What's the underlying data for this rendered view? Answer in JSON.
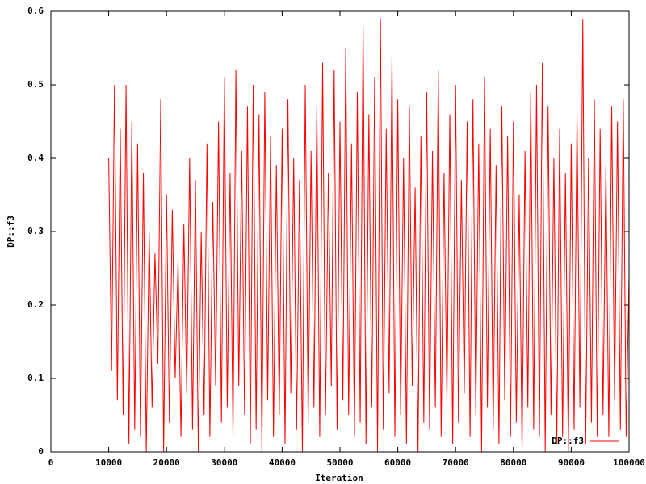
{
  "chart_data": {
    "type": "line",
    "xlabel": "Iteration",
    "ylabel": "DP::f3",
    "xlim": [
      0,
      100000
    ],
    "xticks": [
      0,
      10000,
      20000,
      30000,
      40000,
      50000,
      60000,
      70000,
      80000,
      90000,
      100000
    ],
    "ylim": [
      0,
      0.6
    ],
    "yticks": [
      0,
      0.1,
      0.2,
      0.3,
      0.4,
      0.5,
      0.6
    ],
    "legend": "bottom-right",
    "x": [
      10000,
      10500,
      11000,
      11500,
      12000,
      12500,
      13000,
      13500,
      14000,
      14500,
      15000,
      15500,
      16000,
      16500,
      17000,
      17500,
      18000,
      18500,
      19000,
      19500,
      20000,
      20500,
      21000,
      21500,
      22000,
      22500,
      23000,
      23500,
      24000,
      24500,
      25000,
      25500,
      26000,
      26500,
      27000,
      27500,
      28000,
      28500,
      29000,
      29500,
      30000,
      30500,
      31000,
      31500,
      32000,
      32500,
      33000,
      33500,
      34000,
      34500,
      35000,
      35500,
      36000,
      36500,
      37000,
      37500,
      38000,
      38500,
      39000,
      39500,
      40000,
      40500,
      41000,
      41500,
      42000,
      42500,
      43000,
      43500,
      44000,
      44500,
      45000,
      45500,
      46000,
      46500,
      47000,
      47500,
      48000,
      48500,
      49000,
      49500,
      50000,
      50500,
      51000,
      51500,
      52000,
      52500,
      53000,
      53500,
      54000,
      54500,
      55000,
      55500,
      56000,
      56500,
      57000,
      57500,
      58000,
      58500,
      59000,
      59500,
      60000,
      60500,
      61000,
      61500,
      62000,
      62500,
      63000,
      63500,
      64000,
      64500,
      65000,
      65500,
      66000,
      66500,
      67000,
      67500,
      68000,
      68500,
      69000,
      69500,
      70000,
      70500,
      71000,
      71500,
      72000,
      72500,
      73000,
      73500,
      74000,
      74500,
      75000,
      75500,
      76000,
      76500,
      77000,
      77500,
      78000,
      78500,
      79000,
      79500,
      80000,
      80500,
      81000,
      81500,
      82000,
      82500,
      83000,
      83500,
      84000,
      84500,
      85000,
      85500,
      86000,
      86500,
      87000,
      87500,
      88000,
      88500,
      89000,
      89500,
      90000,
      90500,
      91000,
      91500,
      92000,
      92500,
      93000,
      93500,
      94000,
      94500,
      95000,
      95500,
      96000,
      96500,
      97000,
      97500,
      98000,
      98500,
      99000,
      99500,
      100000
    ],
    "series": [
      {
        "name": "DP::f3",
        "color": "#ff0000",
        "values": [
          0.4,
          0.11,
          0.5,
          0.07,
          0.44,
          0.05,
          0.5,
          0.01,
          0.45,
          0.03,
          0.42,
          0.02,
          0.38,
          0.0,
          0.3,
          0.06,
          0.27,
          0.12,
          0.48,
          0.0,
          0.35,
          0.04,
          0.33,
          0.1,
          0.26,
          0.02,
          0.31,
          0.08,
          0.4,
          0.03,
          0.37,
          0.0,
          0.3,
          0.05,
          0.42,
          0.02,
          0.34,
          0.09,
          0.45,
          0.04,
          0.51,
          0.06,
          0.38,
          0.02,
          0.52,
          0.09,
          0.41,
          0.05,
          0.47,
          0.01,
          0.5,
          0.03,
          0.46,
          0.0,
          0.49,
          0.07,
          0.43,
          0.02,
          0.39,
          0.05,
          0.44,
          0.01,
          0.48,
          0.08,
          0.4,
          0.03,
          0.37,
          0.0,
          0.5,
          0.04,
          0.41,
          0.06,
          0.47,
          0.02,
          0.53,
          0.05,
          0.38,
          0.09,
          0.52,
          0.03,
          0.45,
          0.07,
          0.55,
          0.05,
          0.42,
          0.02,
          0.49,
          0.04,
          0.58,
          0.01,
          0.46,
          0.06,
          0.51,
          0.0,
          0.59,
          0.03,
          0.44,
          0.08,
          0.54,
          0.02,
          0.48,
          0.05,
          0.4,
          0.01,
          0.47,
          0.09,
          0.36,
          0.0,
          0.43,
          0.04,
          0.49,
          0.03,
          0.41,
          0.06,
          0.52,
          0.02,
          0.38,
          0.07,
          0.46,
          0.01,
          0.5,
          0.04,
          0.37,
          0.08,
          0.45,
          0.02,
          0.48,
          0.05,
          0.42,
          0.0,
          0.51,
          0.06,
          0.44,
          0.03,
          0.39,
          0.01,
          0.47,
          0.07,
          0.43,
          0.02,
          0.45,
          0.04,
          0.35,
          0.0,
          0.41,
          0.06,
          0.49,
          0.03,
          0.5,
          0.02,
          0.53,
          0.0,
          0.47,
          0.05,
          0.4,
          0.01,
          0.44,
          0.02,
          0.38,
          0.0,
          0.42,
          0.03,
          0.46,
          0.06,
          0.59,
          0.01,
          0.4,
          0.04,
          0.48,
          0.02,
          0.44,
          0.05,
          0.39,
          0.02,
          0.47,
          0.07,
          0.45,
          0.03,
          0.48,
          0.02,
          0.24
        ]
      }
    ]
  }
}
